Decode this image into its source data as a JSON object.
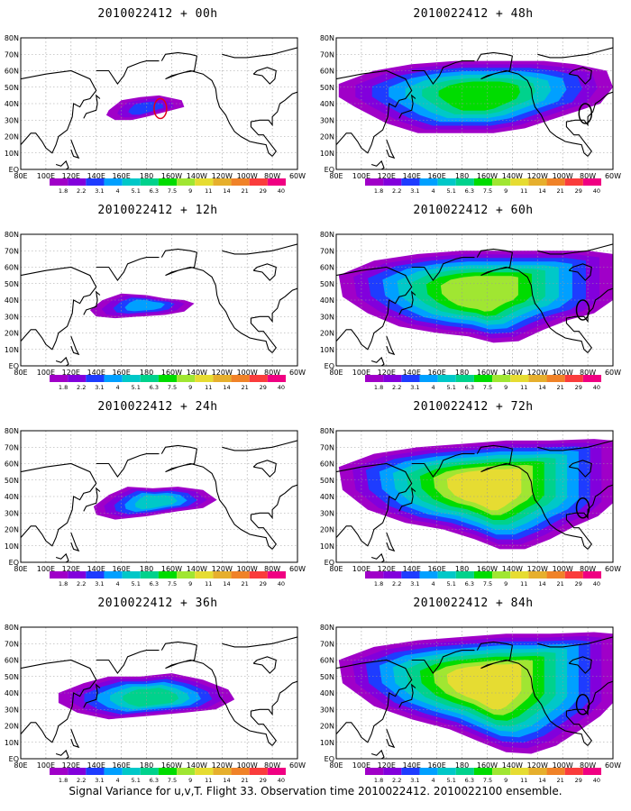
{
  "figure": {
    "caption": "Signal Variance for u,v,T. Flight 33. Observation time 2010022412. 2010022100 ensemble.",
    "lat_labels": [
      "EQ",
      "10N",
      "20N",
      "30N",
      "40N",
      "50N",
      "60N",
      "70N",
      "80N"
    ],
    "lon_labels": [
      "80E",
      "100E",
      "120E",
      "140E",
      "160E",
      "180",
      "160W",
      "140W",
      "120W",
      "100W",
      "80W",
      "60W"
    ],
    "colorbar": {
      "levels": [
        "1.8",
        "2.2",
        "3.1",
        "4",
        "5.1",
        "6.3",
        "7.5",
        "9",
        "11",
        "14",
        "21",
        "29",
        "40"
      ],
      "colors": [
        "#a000c8",
        "#8200dc",
        "#1e3cff",
        "#00a0ff",
        "#00c8c8",
        "#00d28c",
        "#00dc00",
        "#a0e632",
        "#e6dc32",
        "#e6af2d",
        "#f08228",
        "#fa3c3c",
        "#f00082"
      ]
    },
    "lat_range": [
      0,
      80
    ],
    "lon_range": [
      80,
      300
    ],
    "grid": true
  },
  "panels": [
    {
      "title": "2010022412 + 00h",
      "level": 0,
      "circle": {
        "color": "#e0001c",
        "lon": 191,
        "lat": 37
      }
    },
    {
      "title": "2010022412 + 48h",
      "level": 4,
      "circle": {
        "color": "#000000",
        "lon": 278,
        "lat": 34
      }
    },
    {
      "title": "2010022412 + 12h",
      "level": 1
    },
    {
      "title": "2010022412 + 60h",
      "level": 5,
      "circle": {
        "color": "#000000",
        "lon": 276,
        "lat": 34
      }
    },
    {
      "title": "2010022412 + 24h",
      "level": 2
    },
    {
      "title": "2010022412 + 72h",
      "level": 6,
      "circle": {
        "color": "#000000",
        "lon": 276,
        "lat": 33
      }
    },
    {
      "title": "2010022412 + 36h",
      "level": 3
    },
    {
      "title": "2010022412 + 84h",
      "level": 7,
      "circle": {
        "color": "#000000",
        "lon": 276,
        "lat": 33
      }
    }
  ]
}
